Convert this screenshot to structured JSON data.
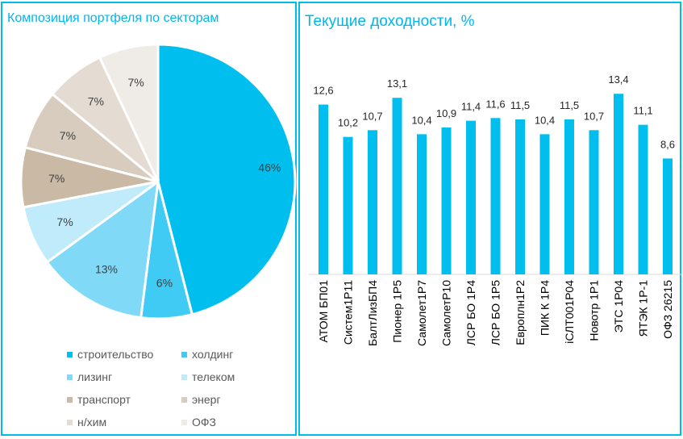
{
  "chart_data": [
    {
      "type": "pie",
      "title": "Композиция портфеля по секторам",
      "slices": [
        {
          "name": "строительство",
          "value": 46,
          "label": "46%",
          "color": "#00bfef"
        },
        {
          "name": "холдинг",
          "value": 6,
          "label": "6%",
          "color": "#3fcbf3"
        },
        {
          "name": "лизинг",
          "value": 13,
          "label": "13%",
          "color": "#80d9f6"
        },
        {
          "name": "телеком",
          "value": 7,
          "label": "7%",
          "color": "#bfebfa"
        },
        {
          "name": "транспорт",
          "value": 7,
          "label": "7%",
          "color": "#c9b9a5"
        },
        {
          "name": "энерг",
          "value": 7,
          "label": "7%",
          "color": "#d8ccbe"
        },
        {
          "name": "н/хим",
          "value": 7,
          "label": "7%",
          "color": "#e4dcd2"
        },
        {
          "name": "ОФЗ",
          "value": 7,
          "label": "7%",
          "color": "#efebe7"
        }
      ],
      "legend_position": "bottom"
    },
    {
      "type": "bar",
      "title": "Текущие доходности, %",
      "categories": [
        "АТОМ БП01",
        "Систем1Р11",
        "БалтЛизБП4",
        "Пионер 1Р5",
        "Самолет1Р7",
        "СамолетР10",
        "ЛСР БО 1Р4",
        "ЛСР БО 1Р5",
        "Европлн1Р2",
        "ПИК К 1Р4",
        "iСЛТ001Р04",
        "Новотр 1Р1",
        "ЭТС 1Р04",
        "ЯТЭК 1Р-1",
        "ОФЗ 26215"
      ],
      "values": [
        12.6,
        10.2,
        10.7,
        13.1,
        10.4,
        10.9,
        11.4,
        11.6,
        11.5,
        10.4,
        11.5,
        10.7,
        13.4,
        11.1,
        8.6
      ],
      "value_labels": [
        "12,6",
        "10,2",
        "10,7",
        "13,1",
        "10,4",
        "10,9",
        "11,4",
        "11,6",
        "11,5",
        "10,4",
        "11,5",
        "10,7",
        "13,4",
        "11,1",
        "8,6"
      ],
      "color": "#00bfef",
      "grid": false
    }
  ]
}
